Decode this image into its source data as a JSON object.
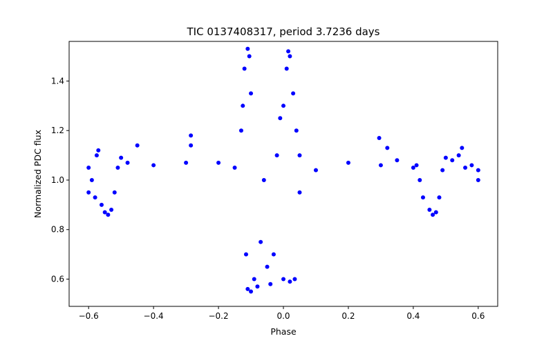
{
  "chart_data": {
    "type": "scatter",
    "title": "TIC 0137408317, period 3.7236 days",
    "xlabel": "Phase",
    "ylabel": "Normalized PDC flux",
    "xlim": [
      -0.66,
      0.66
    ],
    "ylim": [
      0.49,
      1.56
    ],
    "xticks": [
      -0.6,
      -0.4,
      -0.2,
      0.0,
      0.2,
      0.4,
      0.6
    ],
    "xtick_labels": [
      "−0.6",
      "−0.4",
      "−0.2",
      "0.0",
      "0.2",
      "0.4",
      "0.6"
    ],
    "yticks": [
      0.6,
      0.8,
      1.0,
      1.2,
      1.4
    ],
    "ytick_labels": [
      "0.6",
      "0.8",
      "1.0",
      "1.2",
      "1.4"
    ],
    "marker_color": "#0000ff",
    "series": [
      {
        "name": "flux",
        "points": [
          [
            -0.6,
            1.05
          ],
          [
            -0.6,
            0.95
          ],
          [
            -0.59,
            1.0
          ],
          [
            -0.58,
            0.93
          ],
          [
            -0.575,
            1.1
          ],
          [
            -0.57,
            1.12
          ],
          [
            -0.56,
            0.9
          ],
          [
            -0.55,
            0.87
          ],
          [
            -0.54,
            0.86
          ],
          [
            -0.53,
            0.88
          ],
          [
            -0.52,
            0.95
          ],
          [
            -0.51,
            1.05
          ],
          [
            -0.5,
            1.09
          ],
          [
            -0.48,
            1.07
          ],
          [
            -0.45,
            1.14
          ],
          [
            -0.4,
            1.06
          ],
          [
            -0.3,
            1.07
          ],
          [
            -0.285,
            1.18
          ],
          [
            -0.285,
            1.14
          ],
          [
            -0.2,
            1.07
          ],
          [
            -0.15,
            1.05
          ],
          [
            -0.13,
            1.2
          ],
          [
            -0.125,
            1.3
          ],
          [
            -0.12,
            1.45
          ],
          [
            -0.11,
            1.53
          ],
          [
            -0.105,
            1.5
          ],
          [
            -0.1,
            1.35
          ],
          [
            -0.115,
            0.7
          ],
          [
            -0.11,
            0.56
          ],
          [
            -0.1,
            0.55
          ],
          [
            -0.09,
            0.6
          ],
          [
            -0.08,
            0.57
          ],
          [
            -0.07,
            0.75
          ],
          [
            -0.06,
            1.0
          ],
          [
            -0.05,
            0.65
          ],
          [
            -0.04,
            0.58
          ],
          [
            -0.03,
            0.7
          ],
          [
            -0.02,
            1.1
          ],
          [
            -0.01,
            1.25
          ],
          [
            0.0,
            1.3
          ],
          [
            0.01,
            1.45
          ],
          [
            0.015,
            1.52
          ],
          [
            0.02,
            1.5
          ],
          [
            0.03,
            1.35
          ],
          [
            0.04,
            1.2
          ],
          [
            0.05,
            1.1
          ],
          [
            0.0,
            0.6
          ],
          [
            0.02,
            0.59
          ],
          [
            0.035,
            0.6
          ],
          [
            0.05,
            0.95
          ],
          [
            0.1,
            1.04
          ],
          [
            0.2,
            1.07
          ],
          [
            0.3,
            1.06
          ],
          [
            0.295,
            1.17
          ],
          [
            0.32,
            1.13
          ],
          [
            0.35,
            1.08
          ],
          [
            0.4,
            1.05
          ],
          [
            0.41,
            1.06
          ],
          [
            0.42,
            1.0
          ],
          [
            0.43,
            0.93
          ],
          [
            0.45,
            0.88
          ],
          [
            0.46,
            0.86
          ],
          [
            0.47,
            0.87
          ],
          [
            0.48,
            0.93
          ],
          [
            0.49,
            1.04
          ],
          [
            0.5,
            1.09
          ],
          [
            0.52,
            1.08
          ],
          [
            0.54,
            1.1
          ],
          [
            0.55,
            1.13
          ],
          [
            0.56,
            1.05
          ],
          [
            0.58,
            1.06
          ],
          [
            0.6,
            1.04
          ],
          [
            0.6,
            1.0
          ]
        ]
      }
    ]
  }
}
